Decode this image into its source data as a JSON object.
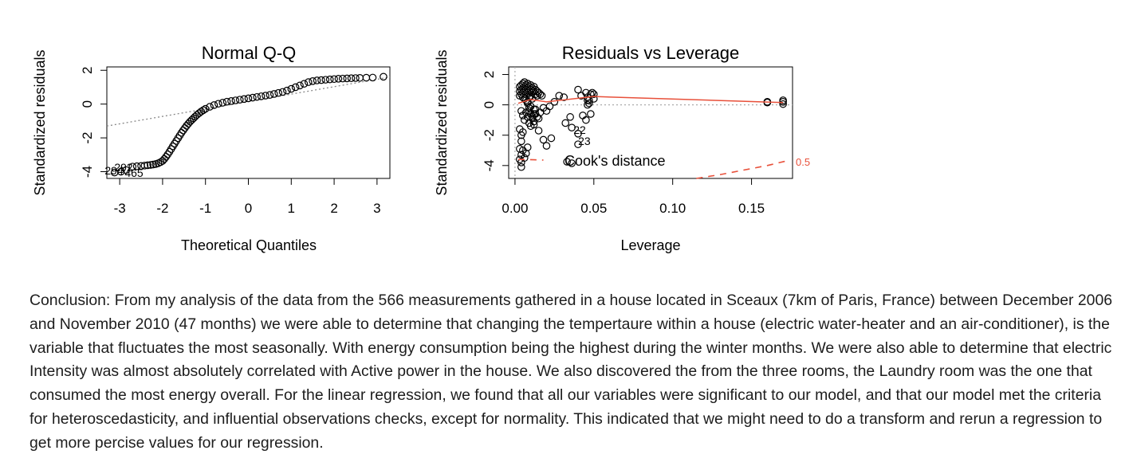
{
  "chart_data": [
    {
      "type": "scatter",
      "title": "Normal Q-Q",
      "xlabel": "Theoretical Quantiles",
      "ylabel": "Standardized residuals",
      "xlim": [
        -3.3,
        3.3
      ],
      "ylim": [
        -4.4,
        2.2
      ],
      "x_ticks": [
        "-3",
        "-2",
        "-1",
        "0",
        "1",
        "2",
        "3"
      ],
      "y_ticks": [
        "-4",
        "-2",
        "0",
        "2"
      ],
      "grid": false,
      "reference_line": {
        "style": "dotted",
        "color": "#888888",
        "points": [
          [
            -3.3,
            -1.3
          ],
          [
            3.3,
            1.6
          ]
        ]
      },
      "point_labels": [
        "292",
        "294",
        "465"
      ],
      "series": [
        {
          "x": [
            -3.12,
            -2.97,
            -2.85,
            -2.7,
            -2.6,
            -2.5,
            -2.42,
            -2.35,
            -2.28,
            -2.22,
            -2.16,
            -2.1,
            -2.05,
            -2.0,
            -1.96,
            -1.92,
            -1.88,
            -1.84,
            -1.8,
            -1.76,
            -1.72,
            -1.68,
            -1.64,
            -1.6,
            -1.56,
            -1.52,
            -1.48,
            -1.44,
            -1.4,
            -1.36,
            -1.32,
            -1.28,
            -1.24,
            -1.2,
            -1.15,
            -1.1,
            -1.05,
            -1.0,
            -0.9,
            -0.8,
            -0.7,
            -0.6,
            -0.5,
            -0.4,
            -0.3,
            -0.2,
            -0.1,
            0.0,
            0.1,
            0.2,
            0.3,
            0.4,
            0.5,
            0.6,
            0.7,
            0.8,
            0.9,
            1.0,
            1.1,
            1.2,
            1.3,
            1.4,
            1.5,
            1.6,
            1.7,
            1.8,
            1.9,
            2.0,
            2.1,
            2.2,
            2.3,
            2.4,
            2.5,
            2.6,
            2.75,
            2.9,
            3.15
          ],
          "y": [
            -4.05,
            -4.0,
            -3.9,
            -3.7,
            -3.68,
            -3.66,
            -3.64,
            -3.62,
            -3.6,
            -3.58,
            -3.55,
            -3.5,
            -3.44,
            -3.36,
            -3.25,
            -3.12,
            -2.98,
            -2.82,
            -2.66,
            -2.5,
            -2.34,
            -2.18,
            -2.02,
            -1.86,
            -1.7,
            -1.56,
            -1.42,
            -1.28,
            -1.16,
            -1.04,
            -0.94,
            -0.84,
            -0.74,
            -0.64,
            -0.54,
            -0.44,
            -0.36,
            -0.28,
            -0.16,
            -0.06,
            0.02,
            0.08,
            0.14,
            0.18,
            0.22,
            0.26,
            0.3,
            0.34,
            0.38,
            0.42,
            0.46,
            0.5,
            0.54,
            0.6,
            0.66,
            0.72,
            0.8,
            0.9,
            1.0,
            1.1,
            1.2,
            1.3,
            1.36,
            1.4,
            1.42,
            1.44,
            1.46,
            1.48,
            1.5,
            1.51,
            1.52,
            1.53,
            1.54,
            1.55,
            1.56,
            1.57,
            1.62
          ]
        }
      ]
    },
    {
      "type": "scatter",
      "title": "Residuals vs Leverage",
      "xlabel": "Leverage",
      "ylabel": "Standardized residuals",
      "xlim": [
        -0.004,
        0.176
      ],
      "ylim": [
        -4.85,
        2.5
      ],
      "x_ticks": [
        "0.00",
        "0.05",
        "0.10",
        "0.15"
      ],
      "y_ticks": [
        "-4",
        "-2",
        "0",
        "2"
      ],
      "grid": false,
      "legend": "Cook's distance",
      "legend_position": "bottom",
      "contour_label": "0.5",
      "point_labels": [
        "22",
        "23"
      ],
      "smoother_color": "#e8503a",
      "series": [
        {
          "x": [
            0.003,
            0.003,
            0.003,
            0.004,
            0.004,
            0.004,
            0.005,
            0.005,
            0.005,
            0.005,
            0.006,
            0.006,
            0.006,
            0.006,
            0.007,
            0.007,
            0.007,
            0.007,
            0.008,
            0.008,
            0.008,
            0.008,
            0.009,
            0.009,
            0.009,
            0.01,
            0.01,
            0.01,
            0.011,
            0.011,
            0.011,
            0.012,
            0.012,
            0.013,
            0.013,
            0.014,
            0.014,
            0.015,
            0.016,
            0.017,
            0.004,
            0.005,
            0.006,
            0.007,
            0.008,
            0.009,
            0.01,
            0.011,
            0.012,
            0.013,
            0.003,
            0.004,
            0.004,
            0.005,
            0.003,
            0.004,
            0.005,
            0.006,
            0.007,
            0.008,
            0.01,
            0.012,
            0.014,
            0.016,
            0.018,
            0.02,
            0.022,
            0.025,
            0.028,
            0.031,
            0.035,
            0.04,
            0.042,
            0.045,
            0.046,
            0.047,
            0.048,
            0.049,
            0.05,
            0.05,
            0.046,
            0.047,
            0.043,
            0.032,
            0.036,
            0.045,
            0.048,
            0.018,
            0.02,
            0.023,
            0.015,
            0.012,
            0.012,
            0.013,
            0.015,
            0.011,
            0.009,
            0.009,
            0.01,
            0.008,
            0.004,
            0.004,
            0.003,
            0.033,
            0.036,
            0.04,
            0.04,
            0.046,
            0.16,
            0.16,
            0.17,
            0.17,
            0.17
          ],
          "y": [
            1.2,
            0.9,
            0.6,
            1.3,
            1.0,
            0.7,
            1.4,
            1.1,
            0.8,
            0.5,
            1.5,
            1.2,
            0.9,
            0.4,
            1.3,
            1.0,
            0.7,
            0.3,
            1.4,
            1.1,
            0.8,
            0.2,
            1.2,
            0.9,
            0.5,
            1.3,
            1.0,
            0.6,
            1.1,
            0.8,
            0.4,
            1.2,
            0.9,
            1.0,
            0.7,
            0.9,
            0.6,
            0.8,
            0.7,
            0.6,
            -0.4,
            -0.7,
            -1.0,
            -0.5,
            -0.8,
            -1.2,
            -0.6,
            -0.9,
            -0.3,
            -0.6,
            -1.6,
            -2.0,
            -2.4,
            -1.8,
            -2.9,
            -3.3,
            -3.0,
            -3.5,
            -3.2,
            -2.8,
            -1.4,
            -1.1,
            -0.8,
            -0.5,
            -0.2,
            -0.4,
            -0.1,
            0.2,
            0.6,
            0.5,
            -0.8,
            1.0,
            0.6,
            0.8,
            0.5,
            0.3,
            0.7,
            0.8,
            0.7,
            0.4,
            0.0,
            0.1,
            -0.7,
            -1.2,
            -1.5,
            -1.0,
            -0.6,
            -2.3,
            -2.7,
            -2.2,
            -1.7,
            -1.3,
            -0.6,
            -0.3,
            -0.9,
            -0.8,
            -0.4,
            -0.2,
            -0.1,
            0.1,
            -4.1,
            -3.8,
            -3.6,
            -3.75,
            -3.85,
            -2.6,
            -1.9,
            0.3,
            0.2,
            0.15,
            0.3,
            0.2,
            0.05
          ],
          "labels_at": [
            [
              0.041,
              -1.9,
              "22"
            ],
            [
              0.044,
              -2.65,
              "23"
            ]
          ]
        }
      ],
      "smoother": {
        "x": [
          0.002,
          0.005,
          0.01,
          0.02,
          0.05,
          0.17
        ],
        "y": [
          0.1,
          0.2,
          0.35,
          0.2,
          0.55,
          0.15
        ]
      },
      "reference_lines": [
        {
          "axis": "y",
          "value": 0,
          "style": "dotted"
        },
        {
          "axis": "x",
          "value": 0,
          "style": "dotted"
        }
      ],
      "cooks_curve": {
        "x": [
          0.002,
          0.012,
          0.018
        ],
        "y": [
          -3.6,
          -3.62,
          -3.64
        ]
      },
      "cooks_contour": {
        "x": [
          0.115,
          0.13,
          0.145,
          0.16,
          0.172
        ],
        "y": [
          -4.85,
          -4.6,
          -4.3,
          -4.0,
          -3.7
        ]
      }
    }
  ],
  "conclusion": "Conclusion: From my analysis of the data from the 566 measurements gathered in a house located in Sceaux (7km of Paris, France) between December 2006 and November 2010 (47 months) we were able to determine that changing the tempertaure within a house (electric water-heater and an air-conditioner), is the variable that fluctuates the most seasonally. With energy consumption being the highest during the winter months. We were also able to determine that electric Intensity was almost absolutely correlated with Active power in the house. We also discovered the from the three rooms, the Laundry room was the one that consumed the most energy overall. For the linear regression, we found that all our variables were significant to our model, and that our model met the criteria for heteroscedasticity, and influential observations checks, except for normality. This indicated that we might need to do a transform and rerun a regression to get more percise values for our regression."
}
